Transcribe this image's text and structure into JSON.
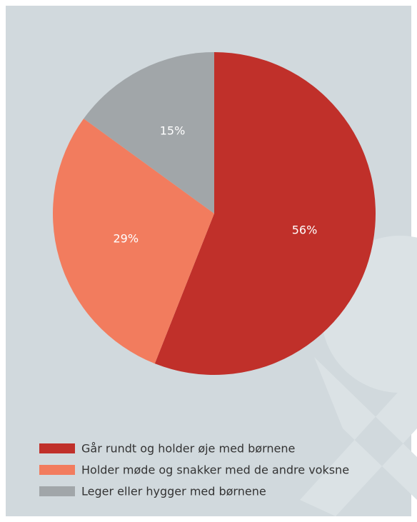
{
  "chart_data": {
    "type": "pie",
    "categories": [
      "Går rundt og holder øje med børnene",
      "Holder møde og snakker med de andre voksne",
      "Leger eller hygger med børnene"
    ],
    "values": [
      56,
      29,
      15
    ],
    "value_labels": [
      "56%",
      "29%",
      "15%"
    ],
    "colors": [
      "#c0302a",
      "#f27c5e",
      "#a1a6a9"
    ]
  }
}
